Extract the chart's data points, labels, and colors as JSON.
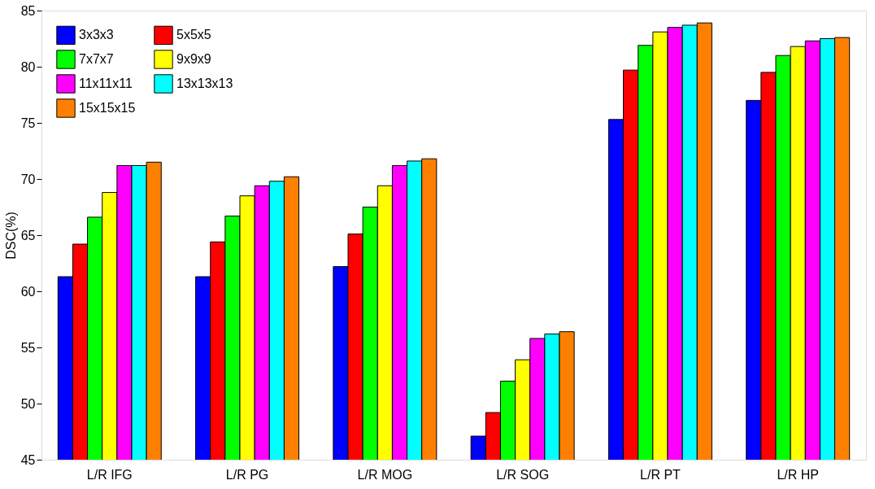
{
  "chart_data": {
    "type": "bar",
    "ylabel": "DSC(%)",
    "categories": [
      "L/R IFG",
      "L/R PG",
      "L/R MOG",
      "L/R SOG",
      "L/R PT",
      "L/R HP"
    ],
    "ylim": [
      45,
      85
    ],
    "yticks": [
      45,
      50,
      55,
      60,
      65,
      70,
      75,
      80,
      85
    ],
    "grid": false,
    "legend": "top left",
    "series": [
      {
        "name": "3x3x3",
        "color": "#0000ff",
        "values": [
          61.3,
          61.3,
          62.2,
          47.1,
          75.3,
          77.0
        ]
      },
      {
        "name": "5x5x5",
        "color": "#ff0000",
        "values": [
          64.2,
          64.4,
          65.1,
          49.2,
          79.7,
          79.5
        ]
      },
      {
        "name": "7x7x7",
        "color": "#00ff00",
        "values": [
          66.6,
          66.7,
          67.5,
          52.0,
          81.9,
          81.0
        ]
      },
      {
        "name": "9x9x9",
        "color": "#ffff00",
        "values": [
          68.8,
          68.5,
          69.4,
          53.9,
          83.1,
          81.8
        ]
      },
      {
        "name": "11x11x11",
        "color": "#ff00ff",
        "values": [
          71.2,
          69.4,
          71.2,
          55.8,
          83.5,
          82.3
        ]
      },
      {
        "name": "13x13x13",
        "color": "#00ffff",
        "values": [
          71.2,
          69.8,
          71.6,
          56.2,
          83.7,
          82.5
        ]
      },
      {
        "name": "15x15x15",
        "color": "#ff8000",
        "values": [
          71.5,
          70.2,
          71.8,
          56.4,
          83.9,
          82.6
        ]
      }
    ]
  }
}
